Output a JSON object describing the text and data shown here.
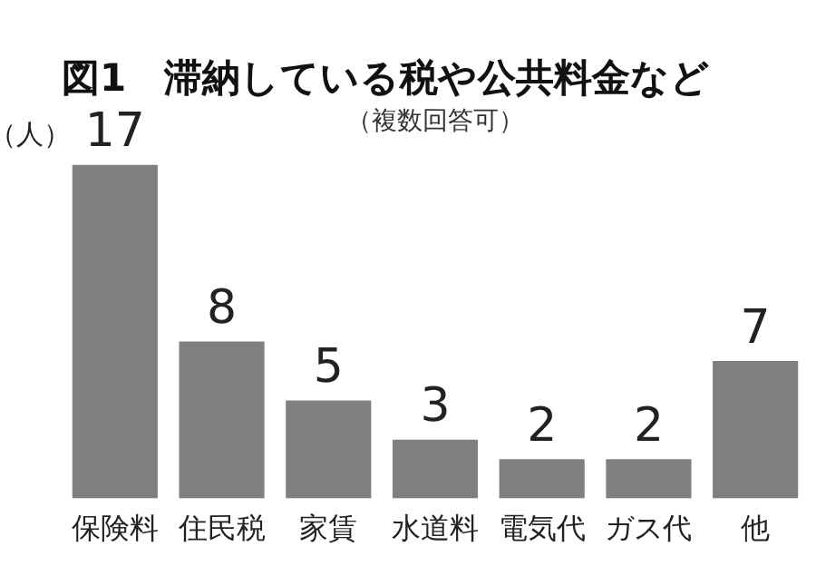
{
  "chart_data": {
    "type": "bar",
    "title": "図1　滞納している税や公共料金など",
    "subtitle": "（複数回答可）",
    "ylabel": "（人）",
    "categories": [
      "保険料",
      "住民税",
      "家賃",
      "水道料",
      "電気代",
      "ガス代",
      "他"
    ],
    "values": [
      17,
      8,
      5,
      3,
      2,
      2,
      7
    ],
    "color": "#808080",
    "data_labels": true,
    "tick_labels": "x",
    "grid": false,
    "legend": false
  }
}
